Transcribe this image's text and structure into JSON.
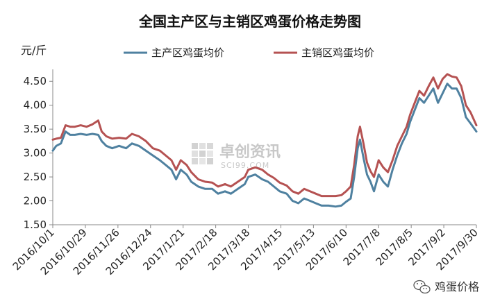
{
  "chart_data": {
    "type": "line",
    "title": "全国主产区与主销区鸡蛋价格走势图",
    "ylabel": "元/斤",
    "xlabel": "",
    "ylim": [
      1.5,
      4.75
    ],
    "yticks": [
      "1.50",
      "2.00",
      "2.50",
      "3.00",
      "3.50",
      "4.00",
      "4.50"
    ],
    "xticks": [
      "2016/10/1",
      "2016/10/29",
      "2016/11/26",
      "2016/12/24",
      "2017/1/21",
      "2017/2/18",
      "2017/3/18",
      "2017/4/15",
      "2017/5/13",
      "2017/6/10",
      "2017/7/8",
      "2017/8/5",
      "2017/9/2",
      "2017/9/30"
    ],
    "legend_position": "top",
    "grid": false,
    "series": [
      {
        "name": "主产区鸡蛋均价",
        "color": "#4f81a0",
        "points": [
          [
            "2016/10/1",
            3.05
          ],
          [
            "2016/10/4",
            3.15
          ],
          [
            "2016/10/8",
            3.2
          ],
          [
            "2016/10/12",
            3.45
          ],
          [
            "2016/10/16",
            3.38
          ],
          [
            "2016/10/20",
            3.38
          ],
          [
            "2016/10/25",
            3.4
          ],
          [
            "2016/10/30",
            3.38
          ],
          [
            "2016/11/4",
            3.4
          ],
          [
            "2016/11/9",
            3.38
          ],
          [
            "2016/11/12",
            3.25
          ],
          [
            "2016/11/16",
            3.15
          ],
          [
            "2016/11/21",
            3.1
          ],
          [
            "2016/11/27",
            3.15
          ],
          [
            "2016/12/3",
            3.1
          ],
          [
            "2016/12/8",
            3.2
          ],
          [
            "2016/12/14",
            3.15
          ],
          [
            "2016/12/20",
            3.05
          ],
          [
            "2016/12/26",
            2.95
          ],
          [
            "2017/1/1",
            2.85
          ],
          [
            "2017/1/6",
            2.75
          ],
          [
            "2017/1/11",
            2.65
          ],
          [
            "2017/1/15",
            2.45
          ],
          [
            "2017/1/19",
            2.65
          ],
          [
            "2017/1/24",
            2.55
          ],
          [
            "2017/1/28",
            2.4
          ],
          [
            "2017/2/3",
            2.3
          ],
          [
            "2017/2/9",
            2.25
          ],
          [
            "2017/2/15",
            2.25
          ],
          [
            "2017/2/20",
            2.15
          ],
          [
            "2017/2/26",
            2.2
          ],
          [
            "2017/3/3",
            2.15
          ],
          [
            "2017/3/9",
            2.25
          ],
          [
            "2017/3/15",
            2.35
          ],
          [
            "2017/3/18",
            2.5
          ],
          [
            "2017/3/24",
            2.55
          ],
          [
            "2017/3/30",
            2.45
          ],
          [
            "2017/4/4",
            2.4
          ],
          [
            "2017/4/9",
            2.3
          ],
          [
            "2017/4/14",
            2.2
          ],
          [
            "2017/4/20",
            2.15
          ],
          [
            "2017/4/25",
            2.0
          ],
          [
            "2017/4/30",
            1.95
          ],
          [
            "2017/5/5",
            2.05
          ],
          [
            "2017/5/10",
            2.0
          ],
          [
            "2017/5/15",
            1.95
          ],
          [
            "2017/5/20",
            1.9
          ],
          [
            "2017/5/26",
            1.9
          ],
          [
            "2017/6/1",
            1.88
          ],
          [
            "2017/6/6",
            1.9
          ],
          [
            "2017/6/10",
            1.98
          ],
          [
            "2017/6/14",
            2.05
          ],
          [
            "2017/6/17",
            2.5
          ],
          [
            "2017/6/20",
            3.1
          ],
          [
            "2017/6/22",
            3.28
          ],
          [
            "2017/6/25",
            2.9
          ],
          [
            "2017/6/28",
            2.55
          ],
          [
            "2017/7/1",
            2.4
          ],
          [
            "2017/7/4",
            2.2
          ],
          [
            "2017/7/8",
            2.55
          ],
          [
            "2017/7/12",
            2.4
          ],
          [
            "2017/7/16",
            2.3
          ],
          [
            "2017/7/20",
            2.65
          ],
          [
            "2017/7/24",
            2.95
          ],
          [
            "2017/7/28",
            3.2
          ],
          [
            "2017/8/1",
            3.4
          ],
          [
            "2017/8/4",
            3.65
          ],
          [
            "2017/8/8",
            3.9
          ],
          [
            "2017/8/12",
            4.15
          ],
          [
            "2017/8/16",
            4.05
          ],
          [
            "2017/8/20",
            4.2
          ],
          [
            "2017/8/24",
            4.35
          ],
          [
            "2017/8/28",
            4.05
          ],
          [
            "2017/9/1",
            4.25
          ],
          [
            "2017/9/5",
            4.45
          ],
          [
            "2017/9/9",
            4.35
          ],
          [
            "2017/9/13",
            4.35
          ],
          [
            "2017/9/17",
            4.15
          ],
          [
            "2017/9/21",
            3.75
          ],
          [
            "2017/9/25",
            3.62
          ],
          [
            "2017/9/30",
            3.45
          ]
        ]
      },
      {
        "name": "主销区鸡蛋均价",
        "color": "#b55252",
        "points": [
          [
            "2016/10/1",
            3.28
          ],
          [
            "2016/10/4",
            3.3
          ],
          [
            "2016/10/8",
            3.32
          ],
          [
            "2016/10/12",
            3.58
          ],
          [
            "2016/10/16",
            3.55
          ],
          [
            "2016/10/20",
            3.55
          ],
          [
            "2016/10/25",
            3.58
          ],
          [
            "2016/10/30",
            3.55
          ],
          [
            "2016/11/4",
            3.6
          ],
          [
            "2016/11/9",
            3.68
          ],
          [
            "2016/11/12",
            3.45
          ],
          [
            "2016/11/16",
            3.35
          ],
          [
            "2016/11/21",
            3.3
          ],
          [
            "2016/11/27",
            3.32
          ],
          [
            "2016/12/3",
            3.3
          ],
          [
            "2016/12/8",
            3.4
          ],
          [
            "2016/12/14",
            3.35
          ],
          [
            "2016/12/20",
            3.25
          ],
          [
            "2016/12/26",
            3.1
          ],
          [
            "2017/1/1",
            3.05
          ],
          [
            "2017/1/6",
            2.95
          ],
          [
            "2017/1/11",
            2.85
          ],
          [
            "2017/1/15",
            2.65
          ],
          [
            "2017/1/19",
            2.85
          ],
          [
            "2017/1/24",
            2.75
          ],
          [
            "2017/1/28",
            2.6
          ],
          [
            "2017/2/3",
            2.45
          ],
          [
            "2017/2/9",
            2.4
          ],
          [
            "2017/2/15",
            2.38
          ],
          [
            "2017/2/20",
            2.3
          ],
          [
            "2017/2/26",
            2.35
          ],
          [
            "2017/3/3",
            2.3
          ],
          [
            "2017/3/9",
            2.4
          ],
          [
            "2017/3/15",
            2.5
          ],
          [
            "2017/3/18",
            2.65
          ],
          [
            "2017/3/24",
            2.7
          ],
          [
            "2017/3/30",
            2.65
          ],
          [
            "2017/4/4",
            2.55
          ],
          [
            "2017/4/9",
            2.48
          ],
          [
            "2017/4/14",
            2.38
          ],
          [
            "2017/4/20",
            2.32
          ],
          [
            "2017/4/25",
            2.2
          ],
          [
            "2017/4/30",
            2.15
          ],
          [
            "2017/5/5",
            2.25
          ],
          [
            "2017/5/10",
            2.2
          ],
          [
            "2017/5/15",
            2.15
          ],
          [
            "2017/5/20",
            2.1
          ],
          [
            "2017/5/26",
            2.1
          ],
          [
            "2017/6/1",
            2.1
          ],
          [
            "2017/6/6",
            2.12
          ],
          [
            "2017/6/10",
            2.2
          ],
          [
            "2017/6/14",
            2.3
          ],
          [
            "2017/6/17",
            2.75
          ],
          [
            "2017/6/20",
            3.35
          ],
          [
            "2017/6/22",
            3.55
          ],
          [
            "2017/6/25",
            3.2
          ],
          [
            "2017/6/28",
            2.8
          ],
          [
            "2017/7/1",
            2.62
          ],
          [
            "2017/7/4",
            2.5
          ],
          [
            "2017/7/8",
            2.85
          ],
          [
            "2017/7/12",
            2.7
          ],
          [
            "2017/7/16",
            2.6
          ],
          [
            "2017/7/20",
            2.85
          ],
          [
            "2017/7/24",
            3.15
          ],
          [
            "2017/7/28",
            3.35
          ],
          [
            "2017/8/1",
            3.55
          ],
          [
            "2017/8/4",
            3.8
          ],
          [
            "2017/8/8",
            4.05
          ],
          [
            "2017/8/12",
            4.3
          ],
          [
            "2017/8/16",
            4.2
          ],
          [
            "2017/8/20",
            4.4
          ],
          [
            "2017/8/24",
            4.58
          ],
          [
            "2017/8/28",
            4.35
          ],
          [
            "2017/9/1",
            4.55
          ],
          [
            "2017/9/5",
            4.65
          ],
          [
            "2017/9/9",
            4.6
          ],
          [
            "2017/9/13",
            4.58
          ],
          [
            "2017/9/17",
            4.4
          ],
          [
            "2017/9/21",
            4.0
          ],
          [
            "2017/9/25",
            3.85
          ],
          [
            "2017/9/30",
            3.58
          ]
        ]
      }
    ]
  },
  "watermark": {
    "main": "卓创资讯",
    "sub": "SCI99.COM"
  },
  "brand": {
    "label": "鸡蛋价格",
    "icon": "wechat-icon"
  }
}
